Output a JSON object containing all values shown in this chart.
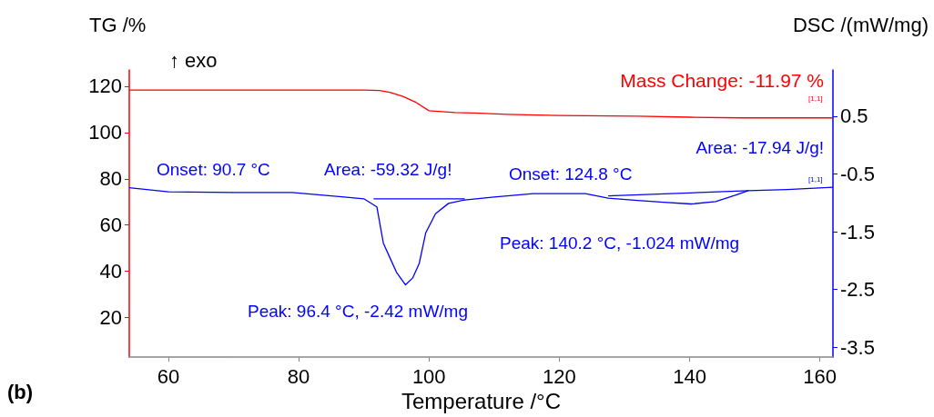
{
  "chart_data": {
    "type": "line",
    "xlabel": "Temperature /°C",
    "ylabel": "TG /%",
    "y2label": "DSC /(mW/mg)",
    "xlim": [
      54,
      162
    ],
    "xticks": [
      60,
      80,
      100,
      120,
      140,
      160
    ],
    "ylim": [
      3,
      127
    ],
    "yticks": [
      20,
      40,
      60,
      80,
      100,
      120
    ],
    "y2lim": [
      -3.67,
      1.3
    ],
    "y2ticks": [
      0.5,
      -0.5,
      -1.5,
      -2.5,
      -3.5
    ],
    "grid": false,
    "marker": "none",
    "line_style": "solid",
    "series": [
      {
        "color": "#ff0000",
        "x": [
          54,
          70,
          85,
          90,
          92.4,
          94,
          96,
          98,
          100,
          102,
          104,
          107,
          112,
          120,
          132,
          140,
          148,
          155,
          162
        ],
        "values": [
          118.3,
          118.3,
          118.3,
          118.3,
          118.1,
          117.3,
          115.6,
          113,
          109.4,
          109,
          108.6,
          108.4,
          107.8,
          107.3,
          107,
          106.6,
          106.3,
          106.3,
          106.3
        ]
      },
      {
        "color": "#0000ff",
        "axis": "y2",
        "x": [
          54,
          60,
          70,
          79,
          87,
          90,
          92,
          93,
          94,
          95,
          96.4,
          97.5,
          98.5,
          99.5,
          101,
          103,
          105.5,
          110,
          116,
          124,
          127.5,
          132,
          136,
          140.2,
          144,
          147,
          149,
          155,
          162
        ],
        "values": [
          -0.74,
          -0.81,
          -0.82,
          -0.82,
          -0.9,
          -0.93,
          -1.07,
          -1.7,
          -1.95,
          -2.2,
          -2.42,
          -2.3,
          -2.05,
          -1.52,
          -1.19,
          -1.01,
          -0.95,
          -0.9,
          -0.84,
          -0.84,
          -0.92,
          -0.96,
          -0.99,
          -1.02,
          -0.98,
          -0.87,
          -0.79,
          -0.77,
          -0.73
        ]
      },
      {
        "color": "#0000ff",
        "axis": "y2",
        "x": [
          91.5,
          105.5
        ],
        "values": [
          -0.93,
          -0.93
        ]
      },
      {
        "color": "#0000ff",
        "axis": "y2",
        "x": [
          127.5,
          149
        ],
        "values": [
          -0.88,
          -0.79
        ]
      }
    ],
    "annotations": [
      "↑ exo",
      "Mass Change: -11.97 %",
      "Onset: 90.7 °C",
      "Area: -59.32 J/g!",
      "Peak: 96.4 °C, -2.42 mW/mg",
      "Onset: 124.8 °C",
      "Area: -17.94 J/g!",
      "Peak: 140.2 °C, -1.024 mW/mg",
      "[1,1]",
      "[1,1]",
      "(b)"
    ]
  }
}
